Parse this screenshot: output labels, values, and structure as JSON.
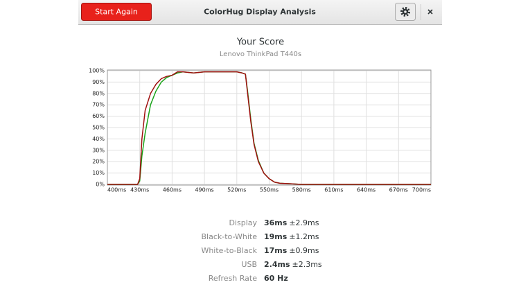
{
  "header": {
    "button": "Start Again",
    "title": "ColorHug Display Analysis"
  },
  "chart_data": {
    "type": "line",
    "title": "Your Score",
    "subtitle": "Lenovo ThinkPad T440s",
    "x": [
      400,
      410,
      420,
      428,
      430,
      432,
      435,
      440,
      445,
      450,
      455,
      460,
      465,
      470,
      480,
      490,
      500,
      510,
      520,
      525,
      528,
      530,
      533,
      536,
      540,
      545,
      550,
      555,
      560,
      570,
      580,
      600,
      650,
      700
    ],
    "series": [
      {
        "color": "#1aa31a",
        "values": [
          0,
          0,
          0,
          0,
          3,
          25,
          45,
          70,
          82,
          90,
          94,
          96,
          98,
          99,
          98,
          99,
          99,
          99,
          99,
          98,
          97,
          82,
          57,
          36,
          21,
          10,
          5,
          2,
          1,
          0.5,
          0,
          0,
          0,
          0
        ]
      },
      {
        "color": "#a01010",
        "values": [
          0,
          0,
          0,
          0,
          5,
          40,
          65,
          80,
          88,
          93,
          95,
          96,
          99,
          99,
          98,
          99,
          99,
          99,
          99,
          98,
          97,
          80,
          55,
          35,
          20,
          10,
          5,
          2,
          1,
          0.5,
          0,
          0,
          0,
          0
        ]
      }
    ],
    "xlim": [
      400,
      700
    ],
    "xticks": [
      {
        "value": 400,
        "label": "400ms"
      },
      {
        "value": 430,
        "label": "430ms"
      },
      {
        "value": 460,
        "label": "460ms"
      },
      {
        "value": 490,
        "label": "490ms"
      },
      {
        "value": 520,
        "label": "520ms"
      },
      {
        "value": 550,
        "label": "550ms"
      },
      {
        "value": 580,
        "label": "580ms"
      },
      {
        "value": 610,
        "label": "610ms"
      },
      {
        "value": 640,
        "label": "640ms"
      },
      {
        "value": 670,
        "label": "670ms"
      },
      {
        "value": 700,
        "label": "700ms"
      }
    ],
    "ylim": [
      0,
      100
    ],
    "yticks": [
      {
        "value": 0,
        "label": "0%"
      },
      {
        "value": 10,
        "label": "10%"
      },
      {
        "value": 20,
        "label": "20%"
      },
      {
        "value": 30,
        "label": "30%"
      },
      {
        "value": 40,
        "label": "40%"
      },
      {
        "value": 50,
        "label": "50%"
      },
      {
        "value": 60,
        "label": "60%"
      },
      {
        "value": 70,
        "label": "70%"
      },
      {
        "value": 80,
        "label": "80%"
      },
      {
        "value": 90,
        "label": "90%"
      },
      {
        "value": 100,
        "label": "100%"
      }
    ],
    "grid": true
  },
  "results": [
    {
      "label": "Display",
      "value": "36ms",
      "error": "±2.9ms"
    },
    {
      "label": "Black-to-White",
      "value": "19ms",
      "error": "±1.2ms"
    },
    {
      "label": "White-to-Black",
      "value": "17ms",
      "error": "±0.9ms"
    },
    {
      "label": "USB",
      "value": "2.4ms",
      "error": "±2.3ms"
    },
    {
      "label": "Refresh Rate",
      "value": "60 Hz"
    }
  ]
}
